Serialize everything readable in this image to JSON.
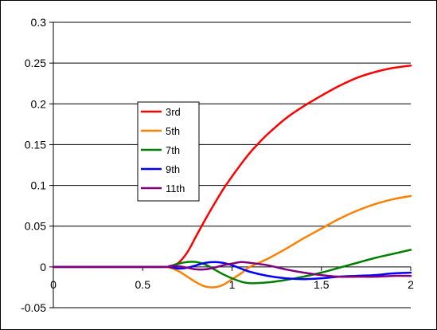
{
  "chart_data": {
    "type": "line",
    "title": "",
    "xlabel": "",
    "ylabel": "",
    "xlim": [
      0,
      2
    ],
    "ylim": [
      -0.05,
      0.3
    ],
    "x_ticks": [
      0,
      0.5,
      1,
      1.5,
      2
    ],
    "x_tick_labels": [
      "0",
      "0.5",
      "1",
      "1.5",
      "2"
    ],
    "y_ticks": [
      0.3,
      0.25,
      0.2,
      0.15,
      0.1,
      0.05,
      0,
      -0.05
    ],
    "y_tick_labels": [
      "0.3",
      "0.25",
      "0.2",
      "0.15",
      "0.1",
      "0.05",
      "0",
      "-0.05"
    ],
    "grid": "horizontal",
    "legend_position": "left-center",
    "series": [
      {
        "name": "3rd",
        "color": "#ff0000",
        "points": [
          [
            0,
            0
          ],
          [
            0.6,
            0
          ],
          [
            0.65,
            0.001
          ],
          [
            0.7,
            0.005
          ],
          [
            0.75,
            0.018
          ],
          [
            0.8,
            0.038
          ],
          [
            0.85,
            0.058
          ],
          [
            0.9,
            0.077
          ],
          [
            0.95,
            0.095
          ],
          [
            1.0,
            0.111
          ],
          [
            1.05,
            0.126
          ],
          [
            1.1,
            0.14
          ],
          [
            1.15,
            0.152
          ],
          [
            1.2,
            0.163
          ],
          [
            1.3,
            0.182
          ],
          [
            1.4,
            0.197
          ],
          [
            1.5,
            0.21
          ],
          [
            1.6,
            0.222
          ],
          [
            1.7,
            0.232
          ],
          [
            1.8,
            0.239
          ],
          [
            1.9,
            0.244
          ],
          [
            2.0,
            0.247
          ]
        ]
      },
      {
        "name": "5th",
        "color": "#ff8000",
        "points": [
          [
            0,
            0
          ],
          [
            0.6,
            0
          ],
          [
            0.65,
            -0.001
          ],
          [
            0.7,
            -0.005
          ],
          [
            0.75,
            -0.012
          ],
          [
            0.8,
            -0.019
          ],
          [
            0.85,
            -0.024
          ],
          [
            0.9,
            -0.025
          ],
          [
            0.95,
            -0.022
          ],
          [
            1.0,
            -0.015
          ],
          [
            1.05,
            -0.008
          ],
          [
            1.1,
            0.0
          ],
          [
            1.2,
            0.01
          ],
          [
            1.3,
            0.022
          ],
          [
            1.4,
            0.035
          ],
          [
            1.5,
            0.047
          ],
          [
            1.6,
            0.059
          ],
          [
            1.7,
            0.069
          ],
          [
            1.8,
            0.077
          ],
          [
            1.9,
            0.083
          ],
          [
            2.0,
            0.087
          ]
        ]
      },
      {
        "name": "7th",
        "color": "#008000",
        "points": [
          [
            0,
            0
          ],
          [
            0.6,
            0
          ],
          [
            0.65,
            0.001
          ],
          [
            0.7,
            0.004
          ],
          [
            0.75,
            0.006
          ],
          [
            0.8,
            0.006
          ],
          [
            0.85,
            0.003
          ],
          [
            0.9,
            -0.003
          ],
          [
            0.95,
            -0.009
          ],
          [
            1.0,
            -0.014
          ],
          [
            1.05,
            -0.018
          ],
          [
            1.1,
            -0.02
          ],
          [
            1.2,
            -0.019
          ],
          [
            1.3,
            -0.016
          ],
          [
            1.4,
            -0.012
          ],
          [
            1.5,
            -0.007
          ],
          [
            1.6,
            -0.001
          ],
          [
            1.7,
            0.005
          ],
          [
            1.8,
            0.011
          ],
          [
            1.9,
            0.016
          ],
          [
            2.0,
            0.021
          ]
        ]
      },
      {
        "name": "9th",
        "color": "#0000ff",
        "points": [
          [
            0,
            0
          ],
          [
            0.6,
            0
          ],
          [
            0.65,
            0.0
          ],
          [
            0.7,
            -0.002
          ],
          [
            0.75,
            -0.001
          ],
          [
            0.8,
            0.002
          ],
          [
            0.85,
            0.005
          ],
          [
            0.9,
            0.006
          ],
          [
            0.95,
            0.005
          ],
          [
            1.0,
            0.002
          ],
          [
            1.05,
            -0.002
          ],
          [
            1.1,
            -0.006
          ],
          [
            1.2,
            -0.011
          ],
          [
            1.3,
            -0.014
          ],
          [
            1.4,
            -0.015
          ],
          [
            1.5,
            -0.014
          ],
          [
            1.6,
            -0.012
          ],
          [
            1.7,
            -0.011
          ],
          [
            1.8,
            -0.01
          ],
          [
            1.9,
            -0.008
          ],
          [
            2.0,
            -0.007
          ]
        ]
      },
      {
        "name": "11th",
        "color": "#800080",
        "points": [
          [
            0,
            0
          ],
          [
            0.6,
            0
          ],
          [
            0.65,
            0.001
          ],
          [
            0.7,
            0.001
          ],
          [
            0.75,
            -0.001
          ],
          [
            0.8,
            -0.003
          ],
          [
            0.85,
            -0.003
          ],
          [
            0.9,
            -0.001
          ],
          [
            0.95,
            0.002
          ],
          [
            1.0,
            0.004
          ],
          [
            1.05,
            0.006
          ],
          [
            1.1,
            0.005
          ],
          [
            1.2,
            0.002
          ],
          [
            1.3,
            -0.003
          ],
          [
            1.4,
            -0.007
          ],
          [
            1.5,
            -0.01
          ],
          [
            1.6,
            -0.012
          ],
          [
            1.7,
            -0.012
          ],
          [
            1.8,
            -0.012
          ],
          [
            1.9,
            -0.011
          ],
          [
            2.0,
            -0.011
          ]
        ]
      }
    ]
  }
}
